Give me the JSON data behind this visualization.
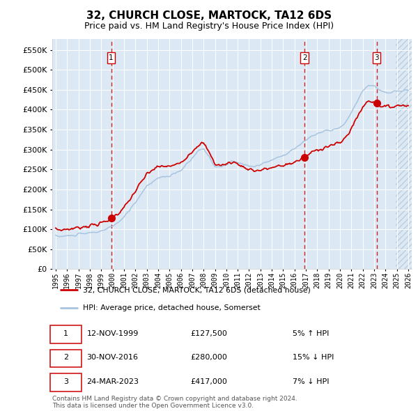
{
  "title": "32, CHURCH CLOSE, MARTOCK, TA12 6DS",
  "subtitle": "Price paid vs. HM Land Registry's House Price Index (HPI)",
  "sale1_date": "12-NOV-1999",
  "sale1_price": 127500,
  "sale1_pct": "5% ↑ HPI",
  "sale2_date": "30-NOV-2016",
  "sale2_price": 280000,
  "sale2_pct": "15% ↓ HPI",
  "sale3_date": "24-MAR-2023",
  "sale3_price": 417000,
  "sale3_pct": "7% ↓ HPI",
  "legend_property": "32, CHURCH CLOSE, MARTOCK, TA12 6DS (detached house)",
  "legend_hpi": "HPI: Average price, detached house, Somerset",
  "footer": "Contains HM Land Registry data © Crown copyright and database right 2024.\nThis data is licensed under the Open Government Licence v3.0.",
  "hpi_color": "#a8c4e0",
  "property_color": "#cc0000",
  "sale_dot_color": "#cc0000",
  "dashed_line_color": "#cc0000",
  "background_color": "#dce9f5",
  "grid_color": "#ffffff",
  "ylim": [
    0,
    577000
  ],
  "yticks": [
    0,
    50000,
    100000,
    150000,
    200000,
    250000,
    300000,
    350000,
    400000,
    450000,
    500000,
    550000
  ],
  "xlim_start": 1994.7,
  "xlim_end": 2026.3,
  "sale1_x": 1999.875,
  "sale2_x": 2016.875,
  "sale3_x": 2023.208,
  "hatch_start": 2024.92
}
